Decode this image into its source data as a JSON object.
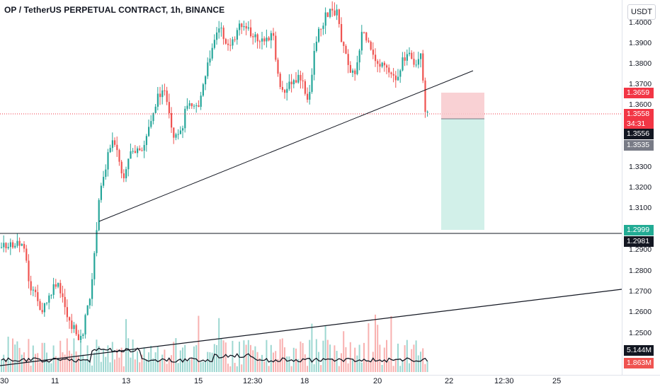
{
  "header": {
    "title": "OP / TetherUS PERPETUAL CONTRACT, 1h, BINANCE",
    "currency": "USDT"
  },
  "price_axis": {
    "ticks": [
      "1.4000",
      "1.3900",
      "1.3800",
      "1.3700",
      "1.3600",
      "1.3300",
      "1.3200",
      "1.3100",
      "1.2900",
      "1.2800",
      "1.2700",
      "1.2600",
      "1.2500"
    ]
  },
  "time_axis": {
    "ticks": [
      "30",
      "11",
      "13",
      "15",
      "12:30",
      "18",
      "20",
      "22",
      "12:30",
      "25"
    ]
  },
  "badges": {
    "stop_price": "1.3659",
    "last_price": "1.3558",
    "countdown": "34:31",
    "entry_price": "1.3556",
    "prev_price": "1.3535",
    "target_price": "1.2999",
    "support_price": "1.2981",
    "volume_ma": "5.144M",
    "volume": "1.863M"
  },
  "colors": {
    "up": "#26a69a",
    "down": "#ef5350",
    "last_line": "#f23645",
    "stop_zone": "#f8c9cd",
    "target_zone": "#cdeee7",
    "target_badge": "#22ab94",
    "grey_badge": "#787b86",
    "dark_badge": "#131722"
  },
  "icons": [
    "price-scale-icon"
  ]
}
